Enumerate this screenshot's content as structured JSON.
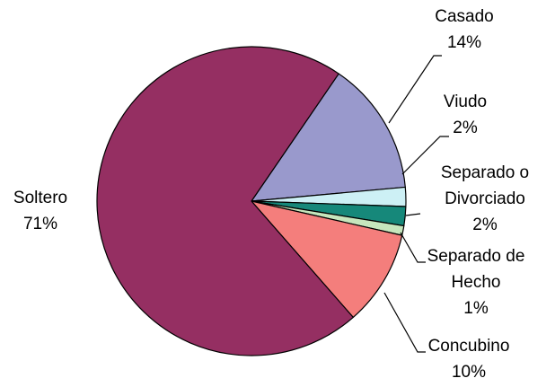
{
  "chart_data": {
    "type": "pie",
    "categories": [
      "Casado",
      "Viudo",
      "Separado o Divorciado",
      "Separado de Hecho",
      "Concubino",
      "Soltero"
    ],
    "values": [
      14,
      2,
      2,
      1,
      10,
      71
    ],
    "value_labels": [
      "14%",
      "2%",
      "2%",
      "1%",
      "10%",
      "71%"
    ],
    "colors": [
      "#9999cc",
      "#cdf0f5",
      "#16887a",
      "#c6e6bd",
      "#f47e7c",
      "#952f62"
    ]
  }
}
